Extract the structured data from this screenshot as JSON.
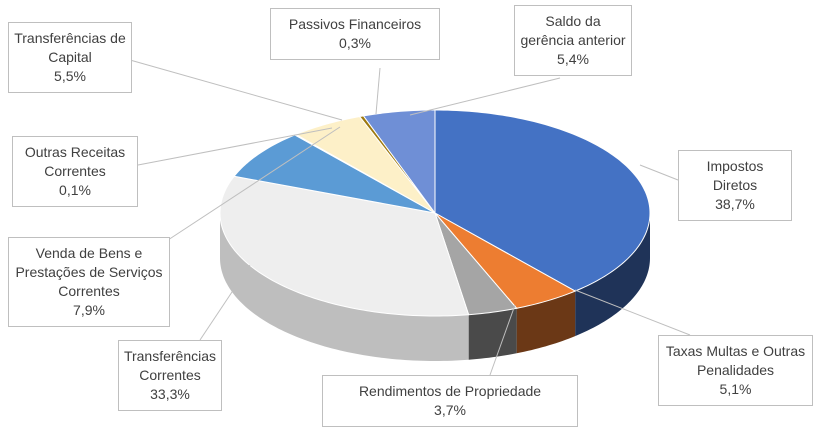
{
  "chart_data": {
    "type": "pie",
    "style": "3d",
    "categories": [
      "Impostos Diretos",
      "Taxas Multas e Outras Penalidades",
      "Rendimentos de Propriedade",
      "Transferências Correntes",
      "Venda de Bens e Prestações de Serviços Correntes",
      "Outras Receitas Correntes",
      "Transferências de Capital",
      "Passivos Financeiros",
      "Saldo da gerência anterior"
    ],
    "values": [
      38.7,
      5.1,
      3.7,
      33.3,
      7.9,
      0.1,
      5.5,
      0.3,
      5.4
    ],
    "value_labels": [
      "38,7%",
      "5,1%",
      "3,7%",
      "33,3%",
      "7,9%",
      "0,1%",
      "5,5%",
      "0,3%",
      "5,4%"
    ],
    "colors": [
      "#4472c4",
      "#ed7d31",
      "#a5a5a5",
      "#eeeeee",
      "#5b9bd5",
      "#70ad47",
      "#fdf0c8",
      "#9e7a10",
      "#6f8fd6"
    ]
  }
}
